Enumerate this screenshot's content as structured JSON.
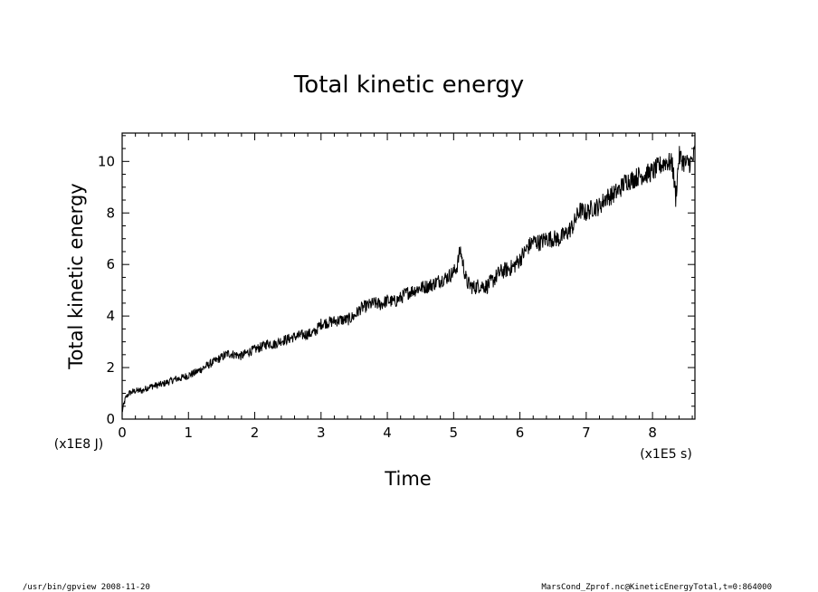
{
  "chart_data": {
    "type": "line",
    "title": "Total kinetic energy",
    "xlabel": "Time",
    "ylabel": "Total kinetic energy",
    "x_unit": "(x1E5 s)",
    "y_unit": "(x1E8 J)",
    "xlim": [
      0,
      8.64
    ],
    "ylim": [
      0,
      11.1
    ],
    "x_ticks": [
      "0",
      "1",
      "2",
      "3",
      "4",
      "5",
      "6",
      "7",
      "8"
    ],
    "y_ticks": [
      "0",
      "2",
      "4",
      "6",
      "8",
      "10"
    ],
    "grid": false,
    "series": [
      {
        "x": [
          0,
          0.05,
          0.1,
          0.2,
          0.3,
          0.4,
          0.5,
          0.6,
          0.7,
          0.8,
          0.9,
          1.0,
          1.1,
          1.2,
          1.3,
          1.4,
          1.5,
          1.6,
          1.7,
          1.8,
          1.9,
          2.0,
          2.1,
          2.2,
          2.3,
          2.4,
          2.5,
          2.6,
          2.7,
          2.8,
          2.9,
          3.0,
          3.1,
          3.2,
          3.3,
          3.4,
          3.5,
          3.6,
          3.7,
          3.8,
          3.9,
          4.0,
          4.1,
          4.2,
          4.3,
          4.4,
          4.5,
          4.6,
          4.7,
          4.8,
          4.9,
          5.0,
          5.05,
          5.1,
          5.15,
          5.2,
          5.3,
          5.4,
          5.5,
          5.6,
          5.7,
          5.8,
          5.9,
          6.0,
          6.1,
          6.2,
          6.3,
          6.4,
          6.5,
          6.6,
          6.7,
          6.8,
          6.9,
          7.0,
          7.1,
          7.2,
          7.3,
          7.4,
          7.5,
          7.6,
          7.7,
          7.8,
          7.9,
          8.0,
          8.1,
          8.2,
          8.3,
          8.35,
          8.4,
          8.5,
          8.6,
          8.64
        ],
        "y": [
          0.3,
          0.8,
          1.0,
          1.1,
          1.1,
          1.25,
          1.3,
          1.35,
          1.45,
          1.55,
          1.6,
          1.7,
          1.8,
          1.95,
          2.1,
          2.25,
          2.4,
          2.55,
          2.5,
          2.45,
          2.6,
          2.7,
          2.8,
          2.95,
          2.9,
          3.05,
          3.1,
          3.2,
          3.25,
          3.3,
          3.35,
          3.7,
          3.75,
          3.8,
          3.85,
          3.85,
          4.0,
          4.3,
          4.4,
          4.5,
          4.45,
          4.6,
          4.55,
          4.7,
          4.9,
          5.0,
          5.1,
          5.15,
          5.25,
          5.4,
          5.5,
          5.7,
          5.9,
          6.6,
          5.9,
          5.3,
          5.1,
          5.2,
          5.15,
          5.4,
          5.7,
          5.8,
          5.9,
          6.2,
          6.6,
          6.9,
          6.85,
          7.0,
          7.0,
          7.0,
          7.2,
          7.5,
          8.1,
          8.0,
          8.2,
          8.25,
          8.6,
          8.7,
          8.9,
          9.25,
          9.3,
          9.45,
          9.5,
          9.6,
          9.8,
          10.0,
          9.9,
          8.6,
          10.2,
          9.9,
          10.0,
          10.4
        ]
      }
    ],
    "footer_left": "/usr/bin/gpview  2008-11-20",
    "footer_right": "MarsCond_Zprof.nc@KineticEnergyTotal,t=0:864000"
  }
}
